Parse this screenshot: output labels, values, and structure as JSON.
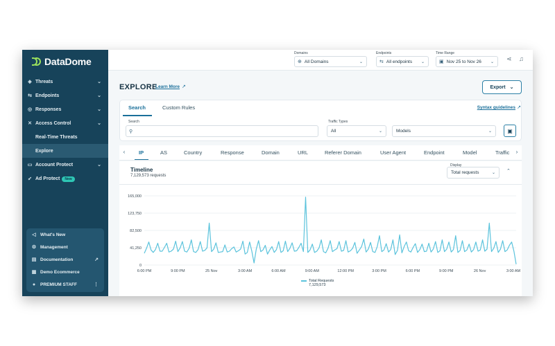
{
  "brand": {
    "name": "DataDome"
  },
  "sidebar": {
    "items": [
      {
        "label": "Threats",
        "icon": "shield-icon",
        "chevron": true
      },
      {
        "label": "Endpoints",
        "icon": "endpoint-icon",
        "chevron": true
      },
      {
        "label": "Responses",
        "icon": "responses-icon",
        "chevron": true
      },
      {
        "label": "Access Control",
        "icon": "tools-icon",
        "chevron": true
      },
      {
        "label": "Real-Time Threats",
        "icon": "",
        "chevron": false
      },
      {
        "label": "Explore",
        "icon": "",
        "chevron": false,
        "active": true
      },
      {
        "label": "Account Protect",
        "icon": "account-icon",
        "chevron": true
      },
      {
        "label": "Ad Protect",
        "icon": "ad-icon",
        "chevron": false,
        "badge": "New"
      }
    ],
    "bottom": [
      {
        "label": "What's New",
        "icon": "megaphone-icon"
      },
      {
        "label": "Management",
        "icon": "gear-icon"
      },
      {
        "label": "Documentation",
        "icon": "document-icon",
        "external": true
      },
      {
        "label": "Demo Ecommerce",
        "icon": "building-icon"
      },
      {
        "label": "PREMIUM STAFF",
        "icon": "user-icon",
        "menu": true
      }
    ]
  },
  "topbar": {
    "domains": {
      "caption": "Domains",
      "value": "All Domains"
    },
    "endpoints": {
      "caption": "Endpoints",
      "value": "All endpoints"
    },
    "time_range": {
      "caption": "Time Range",
      "value": "Nov 25 to Nov 26"
    }
  },
  "page": {
    "title": "EXPLORE",
    "learn_more": "Learn More",
    "export_label": "Export"
  },
  "search_card": {
    "tabs": [
      "Search",
      "Custom Rules"
    ],
    "syntax_link": "Syntax guidelines",
    "search_caption": "Search",
    "search_placeholder": "",
    "traffic_caption": "Traffic Types",
    "traffic_value": "All",
    "models_value": "Models"
  },
  "dimensions": [
    "IP",
    "AS",
    "Country",
    "Response",
    "Domain",
    "URL",
    "Referer Domain",
    "User Agent",
    "Endpoint",
    "Model",
    "Traffic"
  ],
  "timeline": {
    "title": "Timeline",
    "subtitle": "7,129,573 requests",
    "display_caption": "Display",
    "display_value": "Total requests"
  },
  "legend": {
    "series": "Total Requests",
    "total": "7,129,573"
  },
  "colors": {
    "sidebar": "#17435a",
    "accent": "#1a6f9a",
    "line": "#5bc3dc",
    "brand_green": "#9be15d"
  },
  "chart_data": {
    "type": "line",
    "title": "Timeline",
    "ylim": [
      0,
      165000
    ],
    "yticks": [
      "0",
      "41,250",
      "82,500",
      "123,750",
      "165,000"
    ],
    "xtick_labels": [
      "6:00 PM",
      "9:00 PM",
      "25 Nov",
      "3:00 AM",
      "6:00 AM",
      "9:00 AM",
      "12:00 PM",
      "3:00 PM",
      "6:00 PM",
      "9:00 PM",
      "26 Nov",
      "3:00 AM"
    ],
    "grid": true,
    "series": [
      {
        "name": "Total Requests",
        "values": [
          28000,
          40000,
          55000,
          36000,
          30000,
          37000,
          52000,
          33000,
          33000,
          42000,
          52000,
          31000,
          33000,
          38000,
          57000,
          32000,
          41000,
          56000,
          33000,
          31000,
          40000,
          60000,
          32000,
          30000,
          37000,
          56000,
          33000,
          35000,
          41000,
          100000,
          32000,
          38000,
          53000,
          30000,
          31000,
          32000,
          48000,
          31000,
          33000,
          39000,
          43000,
          31000,
          34000,
          38000,
          57000,
          26000,
          30000,
          55000,
          33000,
          5000,
          38000,
          58000,
          32000,
          36000,
          47000,
          26000,
          36000,
          44000,
          30000,
          37000,
          56000,
          30000,
          34000,
          57000,
          32000,
          40000,
          53000,
          33000,
          34000,
          42000,
          52000,
          32000,
          162000,
          30000,
          36000,
          50000,
          30000,
          33000,
          41000,
          60000,
          32000,
          29000,
          40000,
          58000,
          32000,
          36000,
          39000,
          56000,
          33000,
          35000,
          58000,
          31000,
          34000,
          40000,
          54000,
          28000,
          36000,
          44000,
          62000,
          31000,
          38000,
          54000,
          32000,
          30000,
          44000,
          70000,
          32000,
          36000,
          51000,
          31000,
          37000,
          60000,
          25000,
          35000,
          72000,
          29000,
          44000,
          55000,
          34000,
          31000,
          42000,
          51000,
          30000,
          37000,
          50000,
          32000,
          33000,
          52000,
          31000,
          38000,
          56000,
          30000,
          34000,
          60000,
          32000,
          38000,
          55000,
          31000,
          37000,
          70000,
          30000,
          35000,
          58000,
          32000,
          36000,
          50000,
          31000,
          37000,
          55000,
          33000,
          36000,
          60000,
          33000,
          38000,
          100000,
          32000,
          40000,
          56000,
          30000,
          38000,
          58000,
          32000,
          36000,
          47000,
          55000,
          33000,
          2000
        ]
      }
    ]
  }
}
